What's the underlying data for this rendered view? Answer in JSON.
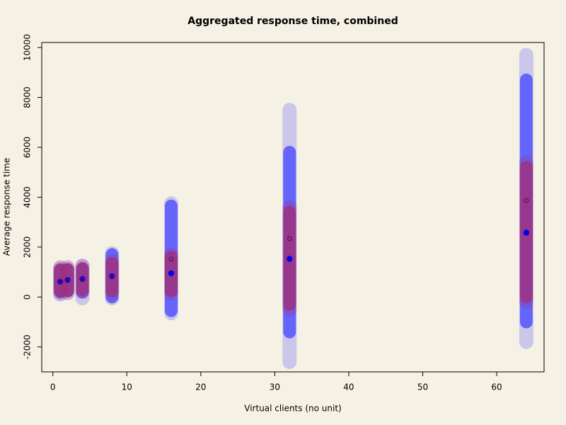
{
  "chart_data": {
    "type": "range",
    "title": "Aggregated response time, combined",
    "x_label": "Virtual clients (no unit)",
    "y_label": "Average response time",
    "xlim": [
      -1.5,
      66.4
    ],
    "ylim": [
      -3000,
      10200
    ],
    "xticks": [
      0,
      10,
      20,
      30,
      40,
      50,
      60
    ],
    "yticks": [
      -2000,
      0,
      2000,
      4000,
      6000,
      8000,
      10000
    ],
    "series": [
      {
        "color": "#4b4bff",
        "marker": "filled",
        "x": [
          1,
          2,
          4,
          8,
          16,
          32,
          64
        ],
        "values": [
          620,
          680,
          720,
          830,
          950,
          1530,
          2580
        ],
        "outer_low": [
          100,
          200,
          -50,
          -50,
          -650,
          -2600,
          -1800
        ],
        "outer_high": [
          1150,
          1150,
          1250,
          1750,
          3750,
          7500,
          9700
        ],
        "low": [
          200,
          250,
          200,
          0,
          -550,
          -1400,
          -1000
        ],
        "high": [
          1050,
          1100,
          1100,
          1700,
          3650,
          5800,
          8700
        ]
      },
      {
        "color": "#a0307a",
        "marker": "open",
        "x": [
          1,
          2,
          4,
          8,
          16,
          32,
          64
        ],
        "values": [
          640,
          650,
          700,
          810,
          1520,
          2340,
          3870
        ],
        "outer_low": [
          150,
          150,
          200,
          150,
          150,
          -500,
          -200
        ],
        "outer_high": [
          1200,
          1200,
          1250,
          1450,
          1700,
          3600,
          5400
        ],
        "low": [
          250,
          250,
          300,
          250,
          250,
          -300,
          0
        ],
        "high": [
          1100,
          1100,
          1150,
          1350,
          1600,
          3400,
          5200
        ]
      }
    ]
  }
}
